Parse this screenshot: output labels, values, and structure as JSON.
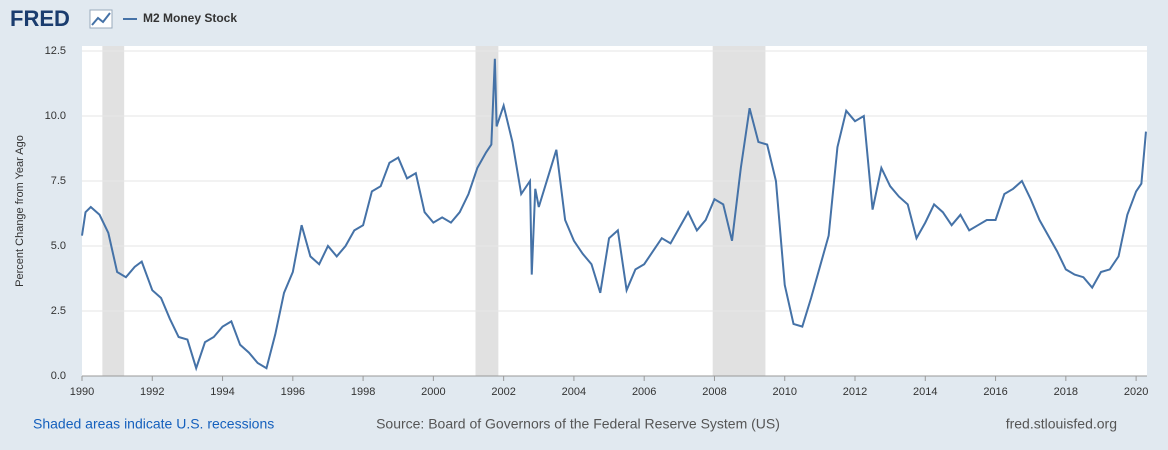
{
  "chart_data": {
    "type": "line",
    "logo": "FRED",
    "y_label": "Percent Change from Year Ago",
    "note": "Shaded areas indicate U.S. recessions",
    "source": "Source: Board of Governors of the Federal Reserve System (US)",
    "site": "fred.stlouisfed.org",
    "x": [
      1990.0,
      1990.1,
      1990.25,
      1990.5,
      1990.75,
      1991.0,
      1991.25,
      1991.5,
      1991.7,
      1992.0,
      1992.25,
      1992.5,
      1992.75,
      1993.0,
      1993.25,
      1993.5,
      1993.75,
      1994.0,
      1994.25,
      1994.5,
      1994.75,
      1995.0,
      1995.25,
      1995.5,
      1995.75,
      1996.0,
      1996.25,
      1996.5,
      1996.75,
      1997.0,
      1997.25,
      1997.5,
      1997.75,
      1998.0,
      1998.25,
      1998.5,
      1998.75,
      1999.0,
      1999.25,
      1999.5,
      1999.75,
      2000.0,
      2000.25,
      2000.5,
      2000.75,
      2001.0,
      2001.25,
      2001.5,
      2001.65,
      2001.75,
      2001.8,
      2002.0,
      2002.25,
      2002.5,
      2002.75,
      2002.8,
      2002.9,
      2003.0,
      2003.25,
      2003.5,
      2003.75,
      2004.0,
      2004.25,
      2004.5,
      2004.75,
      2005.0,
      2005.25,
      2005.5,
      2005.75,
      2006.0,
      2006.25,
      2006.5,
      2006.75,
      2007.0,
      2007.25,
      2007.5,
      2007.75,
      2008.0,
      2008.25,
      2008.5,
      2008.75,
      2009.0,
      2009.25,
      2009.5,
      2009.75,
      2010.0,
      2010.25,
      2010.5,
      2010.75,
      2011.0,
      2011.25,
      2011.5,
      2011.75,
      2012.0,
      2012.25,
      2012.5,
      2012.75,
      2013.0,
      2013.25,
      2013.5,
      2013.75,
      2014.0,
      2014.25,
      2014.5,
      2014.75,
      2015.0,
      2015.25,
      2015.5,
      2015.75,
      2016.0,
      2016.25,
      2016.5,
      2016.75,
      2017.0,
      2017.25,
      2017.5,
      2017.75,
      2018.0,
      2018.25,
      2018.5,
      2018.75,
      2019.0,
      2019.25,
      2019.5,
      2019.75,
      2020.0,
      2020.15,
      2020.28
    ],
    "series": [
      {
        "name": "M2 Money Stock",
        "color": "#4572a7",
        "values": [
          5.4,
          6.3,
          6.5,
          6.2,
          5.5,
          4.0,
          3.8,
          4.2,
          4.4,
          3.3,
          3.0,
          2.2,
          1.5,
          1.4,
          0.3,
          1.3,
          1.5,
          1.9,
          2.1,
          1.2,
          0.9,
          0.5,
          0.3,
          1.6,
          3.2,
          4.0,
          5.8,
          4.6,
          4.3,
          5.0,
          4.6,
          5.0,
          5.6,
          5.8,
          7.1,
          7.3,
          8.2,
          8.4,
          7.6,
          7.8,
          6.3,
          5.9,
          6.1,
          5.9,
          6.3,
          7.0,
          8.0,
          8.6,
          8.9,
          12.2,
          9.6,
          10.4,
          9.0,
          7.0,
          7.5,
          3.9,
          7.2,
          6.5,
          7.6,
          8.7,
          6.0,
          5.2,
          4.7,
          4.3,
          3.2,
          5.3,
          5.6,
          3.3,
          4.1,
          4.3,
          4.8,
          5.3,
          5.1,
          5.7,
          6.3,
          5.6,
          6.0,
          6.8,
          6.6,
          5.2,
          8.0,
          10.3,
          9.0,
          8.9,
          7.5,
          3.5,
          2.0,
          1.9,
          3.0,
          4.2,
          5.4,
          8.8,
          10.2,
          9.8,
          10.0,
          6.4,
          8.0,
          7.3,
          6.9,
          6.6,
          5.3,
          5.9,
          6.6,
          6.3,
          5.8,
          6.2,
          5.6,
          5.8,
          6.0,
          6.0,
          7.0,
          7.2,
          7.5,
          6.8,
          6.0,
          5.4,
          4.8,
          4.1,
          3.9,
          3.8,
          3.4,
          4.0,
          4.1,
          4.6,
          6.2,
          7.1,
          7.4,
          9.4
        ]
      }
    ],
    "recessions": [
      [
        1990.58,
        1991.2
      ],
      [
        2001.2,
        2001.85
      ],
      [
        2007.95,
        2009.45
      ]
    ],
    "recession_color": "#e1e1e1",
    "xlim": [
      1990,
      2020.31
    ],
    "xticks": [
      1990,
      1992,
      1994,
      1996,
      1998,
      2000,
      2002,
      2004,
      2006,
      2008,
      2010,
      2012,
      2014,
      2016,
      2018,
      2020
    ],
    "ylim": [
      0,
      12.5
    ],
    "yticks": [
      {
        "value": 0,
        "label": "0.0"
      },
      2.5,
      {
        "value": 5,
        "label": "5.0"
      },
      7.5,
      {
        "value": 10,
        "label": "10.0"
      },
      12.5
    ],
    "grid": true
  }
}
